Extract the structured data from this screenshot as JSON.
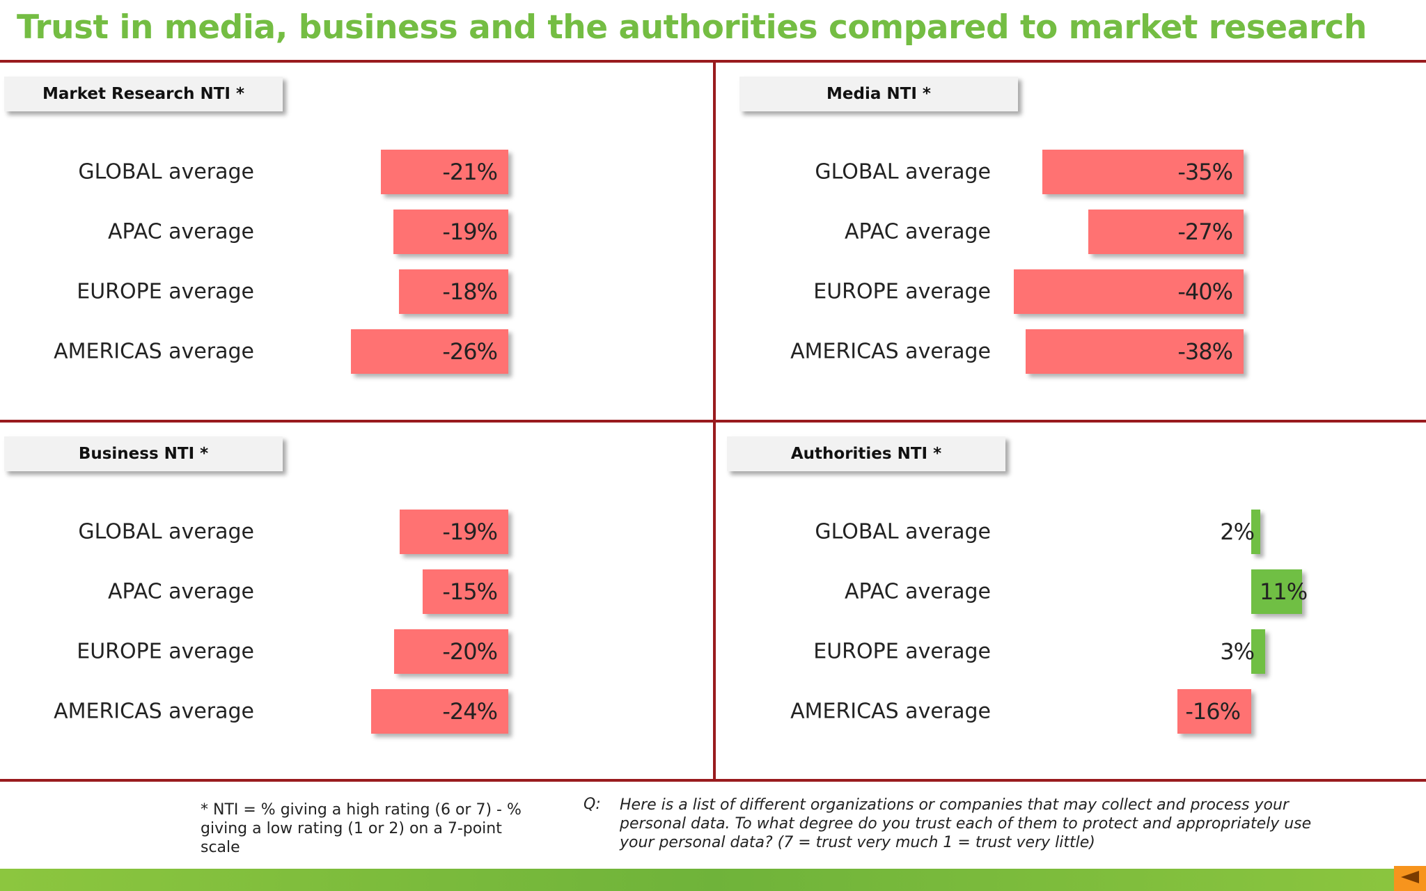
{
  "title": "Trust in media, business and the authorities compared to market research",
  "chart_data": [
    {
      "type": "bar",
      "title": "Market Research NTI *",
      "categories": [
        "GLOBAL average",
        "APAC average",
        "EUROPE average",
        "AMERICAS average"
      ],
      "values": [
        -21,
        -19,
        -18,
        -26
      ],
      "labels": [
        "-21%",
        "-19%",
        "-18%",
        "-26%"
      ]
    },
    {
      "type": "bar",
      "title": "Media NTI *",
      "categories": [
        "GLOBAL average",
        "APAC average",
        "EUROPE average",
        "AMERICAS average"
      ],
      "values": [
        -35,
        -27,
        -40,
        -38
      ],
      "labels": [
        "-35%",
        "-27%",
        "-40%",
        "-38%"
      ]
    },
    {
      "type": "bar",
      "title": "Business NTI *",
      "categories": [
        "GLOBAL average",
        "APAC average",
        "EUROPE average",
        "AMERICAS average"
      ],
      "values": [
        -19,
        -15,
        -20,
        -24
      ],
      "labels": [
        "-19%",
        "-15%",
        "-20%",
        "-24%"
      ]
    },
    {
      "type": "bar",
      "title": "Authorities NTI *",
      "categories": [
        "GLOBAL average",
        "APAC average",
        "EUROPE average",
        "AMERICAS average"
      ],
      "values": [
        2,
        11,
        3,
        -16
      ],
      "labels": [
        "2%",
        "11%",
        "3%",
        "-16%"
      ]
    }
  ],
  "colors": {
    "title": "#74bd43",
    "negative_bar": "#ff7272",
    "positive_bar": "#70bf44",
    "divider": "#991b1e"
  },
  "footnote": "* NTI = % giving a high rating (6 or 7) - % giving a low rating (1 or 2) on a 7-point scale",
  "question_label": "Q:",
  "question_text": "Here is a list of different organizations or companies that may collect and process your personal data.  To what degree do you trust each of them to protect and appropriately use your personal data? (7 = trust very much 1 = trust very little)"
}
